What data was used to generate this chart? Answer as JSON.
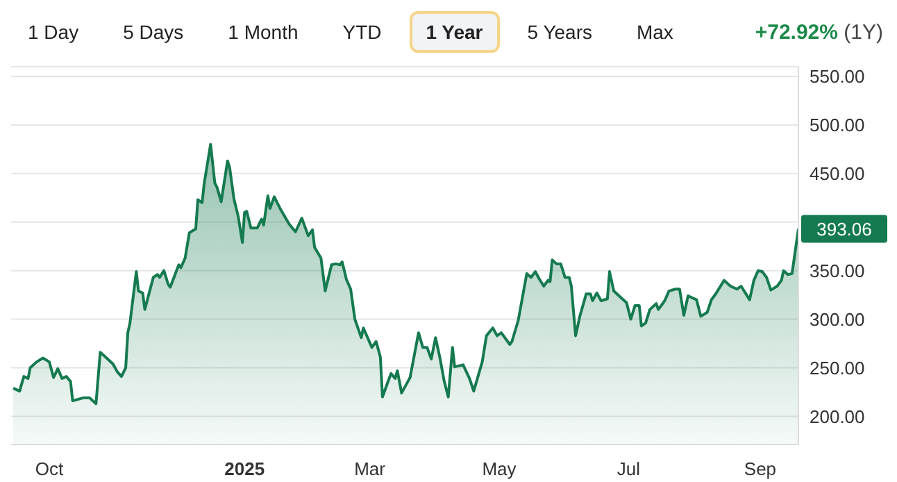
{
  "chart_data": {
    "type": "area",
    "subtitle": "+72.92% (1Y)",
    "annotations": [
      "1 Day",
      "5 Days",
      "1 Month",
      "YTD",
      "1 Year",
      "5 Years",
      "Max",
      {
        "text": "393.06",
        "x": "2025-09-19",
        "y": 393.06
      }
    ],
    "x": [
      "2024-09-14",
      "2024-09-17",
      "2024-09-19",
      "2024-09-21",
      "2024-09-22",
      "2024-09-25",
      "2024-09-28",
      "2024-10-01",
      "2024-10-03",
      "2024-10-05",
      "2024-10-07",
      "2024-10-09",
      "2024-10-11",
      "2024-10-12",
      "2024-10-17",
      "2024-10-20",
      "2024-10-23",
      "2024-10-25",
      "2024-10-28",
      "2024-10-31",
      "2024-11-02",
      "2024-11-04",
      "2024-11-06",
      "2024-11-07",
      "2024-11-08",
      "2024-11-11",
      "2024-11-12",
      "2024-11-14",
      "2024-11-15",
      "2024-11-19",
      "2024-11-21",
      "2024-11-22",
      "2024-11-24",
      "2024-11-26",
      "2024-11-27",
      "2024-12-01",
      "2024-12-02",
      "2024-12-04",
      "2024-12-06",
      "2024-12-09",
      "2024-12-10",
      "2024-12-12",
      "2024-12-13",
      "2024-12-16",
      "2024-12-18",
      "2024-12-19",
      "2024-12-21",
      "2024-12-24",
      "2024-12-25",
      "2024-12-27",
      "2024-12-29",
      "2024-12-31",
      "2025-01-01",
      "2025-01-02",
      "2025-01-04",
      "2025-01-07",
      "2025-01-09",
      "2025-01-10",
      "2025-01-12",
      "2025-01-13",
      "2025-01-15",
      "2025-01-18",
      "2025-01-22",
      "2025-01-25",
      "2025-01-28",
      "2025-01-31",
      "2025-02-02",
      "2025-02-03",
      "2025-02-06",
      "2025-02-08",
      "2025-02-11",
      "2025-02-13",
      "2025-02-15",
      "2025-02-16",
      "2025-02-18",
      "2025-02-20",
      "2025-02-22",
      "2025-02-25",
      "2025-02-26",
      "2025-03-02",
      "2025-03-04",
      "2025-03-06",
      "2025-03-07",
      "2025-03-11",
      "2025-03-13",
      "2025-03-14",
      "2025-03-16",
      "2025-03-19",
      "2025-03-20",
      "2025-03-24",
      "2025-03-26",
      "2025-03-28",
      "2025-03-30",
      "2025-04-01",
      "2025-04-03",
      "2025-04-05",
      "2025-04-07",
      "2025-04-09",
      "2025-04-10",
      "2025-04-14",
      "2025-04-17",
      "2025-04-19",
      "2025-04-23",
      "2025-04-25",
      "2025-04-28",
      "2025-04-30",
      "2025-05-02",
      "2025-05-06",
      "2025-05-07",
      "2025-05-10",
      "2025-05-14",
      "2025-05-16",
      "2025-05-18",
      "2025-05-20",
      "2025-05-22",
      "2025-05-24",
      "2025-05-25",
      "2025-05-26",
      "2025-05-28",
      "2025-05-30",
      "2025-06-01",
      "2025-06-03",
      "2025-06-04",
      "2025-06-06",
      "2025-06-08",
      "2025-06-11",
      "2025-06-13",
      "2025-06-14",
      "2025-06-16",
      "2025-06-18",
      "2025-06-21",
      "2025-06-22",
      "2025-06-24",
      "2025-06-28",
      "2025-06-30",
      "2025-07-02",
      "2025-07-04",
      "2025-07-06",
      "2025-07-07",
      "2025-07-09",
      "2025-07-11",
      "2025-07-14",
      "2025-07-15",
      "2025-07-18",
      "2025-07-20",
      "2025-07-23",
      "2025-07-25",
      "2025-07-27",
      "2025-07-29",
      "2025-08-02",
      "2025-08-04",
      "2025-08-07",
      "2025-08-09",
      "2025-08-11",
      "2025-08-15",
      "2025-08-18",
      "2025-08-21",
      "2025-08-23",
      "2025-08-27",
      "2025-08-29",
      "2025-08-31",
      "2025-09-02",
      "2025-09-04",
      "2025-09-06",
      "2025-09-09",
      "2025-09-11",
      "2025-09-12",
      "2025-09-14",
      "2025-09-16",
      "2025-09-19"
    ],
    "series": [
      {
        "color": "#157a4f",
        "values": [
          229,
          226,
          241,
          239,
          250,
          256,
          260,
          256,
          240,
          249,
          239,
          241,
          236,
          216,
          219,
          219,
          213,
          266,
          260,
          254,
          246,
          241,
          250,
          286,
          296,
          349,
          329,
          327,
          310,
          343,
          346,
          343,
          350,
          336,
          333,
          356,
          353,
          363,
          389,
          393,
          423,
          420,
          440,
          480,
          440,
          436,
          421,
          463,
          456,
          424,
          406,
          379,
          410,
          411,
          394,
          394,
          403,
          397,
          427,
          414,
          426,
          413,
          398,
          390,
          404,
          386,
          392,
          374,
          363,
          329,
          356,
          357,
          356,
          359,
          341,
          331,
          300,
          281,
          291,
          271,
          277,
          261,
          220,
          244,
          239,
          247,
          224,
          236,
          240,
          286,
          271,
          271,
          259,
          281,
          261,
          237,
          220,
          271,
          251,
          253,
          239,
          226,
          256,
          283,
          291,
          283,
          286,
          274,
          277,
          299,
          347,
          343,
          349,
          341,
          334,
          340,
          339,
          361,
          357,
          357,
          343,
          343,
          334,
          283,
          303,
          326,
          326,
          319,
          327,
          319,
          321,
          349,
          329,
          321,
          317,
          300,
          314,
          314,
          293,
          296,
          310,
          316,
          310,
          319,
          329,
          331,
          331,
          304,
          324,
          320,
          303,
          307,
          320,
          326,
          340,
          334,
          331,
          334,
          320,
          340,
          350,
          349,
          343,
          330,
          334,
          340,
          350,
          346,
          347,
          393.06
        ]
      }
    ],
    "xlim": [
      "2024-09-13",
      "2025-09-19"
    ],
    "xticks": [
      {
        "value": "2024-10-01",
        "label": "Oct"
      },
      {
        "value": "2025-01-01",
        "label": "2025"
      },
      {
        "value": "2025-03-01",
        "label": "Mar"
      },
      {
        "value": "2025-05-01",
        "label": "May"
      },
      {
        "value": "2025-07-01",
        "label": "Jul"
      },
      {
        "value": "2025-09-01",
        "label": "Sep"
      }
    ],
    "ylim": [
      171,
      560
    ],
    "yticks": [
      {
        "value": 200,
        "label": "200.00"
      },
      {
        "value": 250,
        "label": "250.00"
      },
      {
        "value": 300,
        "label": "300.00"
      },
      {
        "value": 350,
        "label": "350.00"
      },
      {
        "value": 400,
        "label": null
      },
      {
        "value": 450,
        "label": "450.00"
      },
      {
        "value": 500,
        "label": "500.00"
      },
      {
        "value": 550,
        "label": "550.00"
      }
    ],
    "grid": "y"
  }
}
